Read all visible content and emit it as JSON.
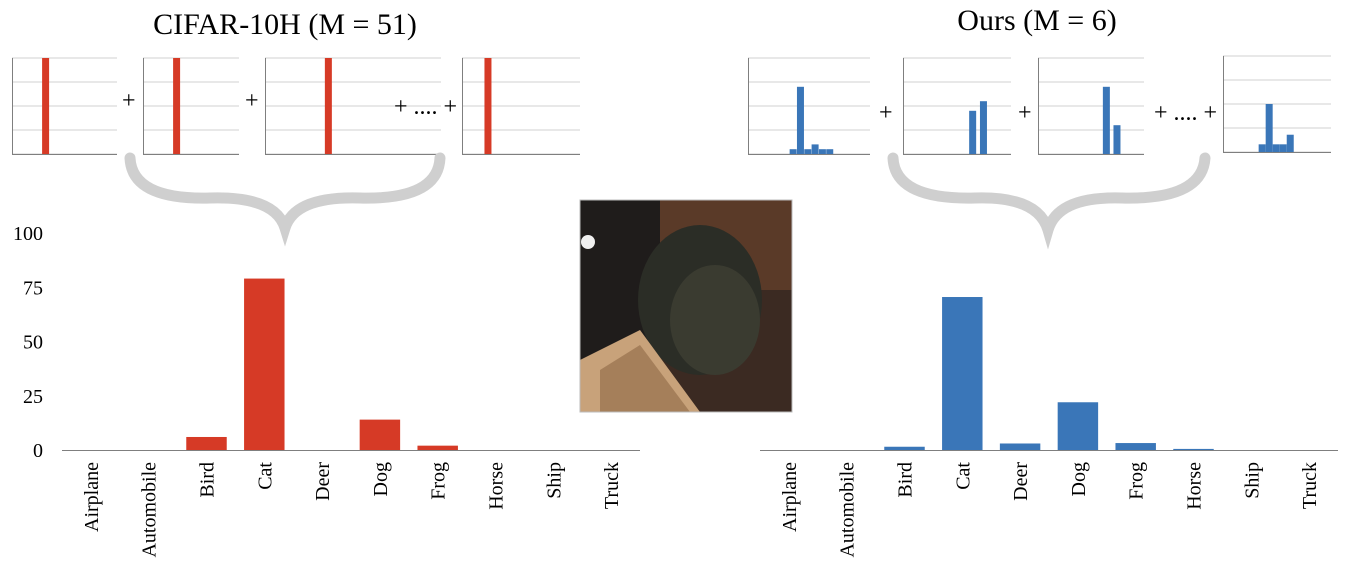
{
  "figure": {
    "colors": {
      "human": "#d63a26",
      "ours": "#3a76b8",
      "axis": "#7f7f7f",
      "grid": "#d0d0d0",
      "brace": "#cfcfcf"
    },
    "operators": {
      "plus": "+",
      "ellipsis_plus": "+ .... +"
    },
    "center_image": {
      "description_icon": "cat-photo-thumbnail"
    }
  },
  "chart_data": [
    {
      "type": "bar",
      "title": "CIFAR-10H (M = 51)",
      "categories": [
        "Airplane",
        "Automobile",
        "Bird",
        "Cat",
        "Deer",
        "Dog",
        "Frog",
        "Horse",
        "Ship",
        "Truck"
      ],
      "values": [
        0,
        0,
        6,
        79,
        0,
        14,
        2,
        0,
        0,
        0
      ],
      "ylim": [
        0,
        100
      ],
      "yticks": [
        0,
        25,
        50,
        75,
        100
      ],
      "grid": false,
      "color": "#d63a26",
      "small_multiples": [
        {
          "values": [
            0,
            0,
            0,
            1,
            0,
            0,
            0,
            0,
            0,
            0
          ]
        },
        {
          "values": [
            0,
            0,
            0,
            1,
            0,
            0,
            0,
            0,
            0,
            0
          ]
        },
        {
          "values": [
            0,
            0,
            0,
            1,
            0,
            0,
            0,
            0,
            0,
            0
          ]
        },
        {
          "values": [
            0,
            0,
            0,
            1,
            0,
            0,
            0,
            0,
            0,
            0
          ]
        }
      ]
    },
    {
      "type": "bar",
      "title": "Ours (M = 6)",
      "categories": [
        "Airplane",
        "Automobile",
        "Bird",
        "Cat",
        "Deer",
        "Dog",
        "Frog",
        "Horse",
        "Ship",
        "Truck"
      ],
      "values": [
        0,
        0,
        1.5,
        70.5,
        3,
        22,
        3.2,
        0.5,
        0,
        0
      ],
      "ylim": [
        0,
        100
      ],
      "grid": false,
      "color": "#3a76b8",
      "small_multiples": [
        {
          "values": [
            0,
            0,
            0.05,
            0.7,
            0.05,
            0.1,
            0.05,
            0.05,
            0,
            0
          ]
        },
        {
          "values": [
            0,
            0,
            0,
            0,
            0,
            0,
            0.45,
            0,
            0.55,
            0
          ]
        },
        {
          "values": [
            0,
            0,
            0,
            0,
            0,
            0,
            0.7,
            0,
            0.3,
            0
          ]
        },
        {
          "values": [
            0,
            0,
            0.08,
            0.5,
            0.08,
            0.08,
            0.18,
            0,
            0,
            0
          ]
        }
      ]
    }
  ]
}
